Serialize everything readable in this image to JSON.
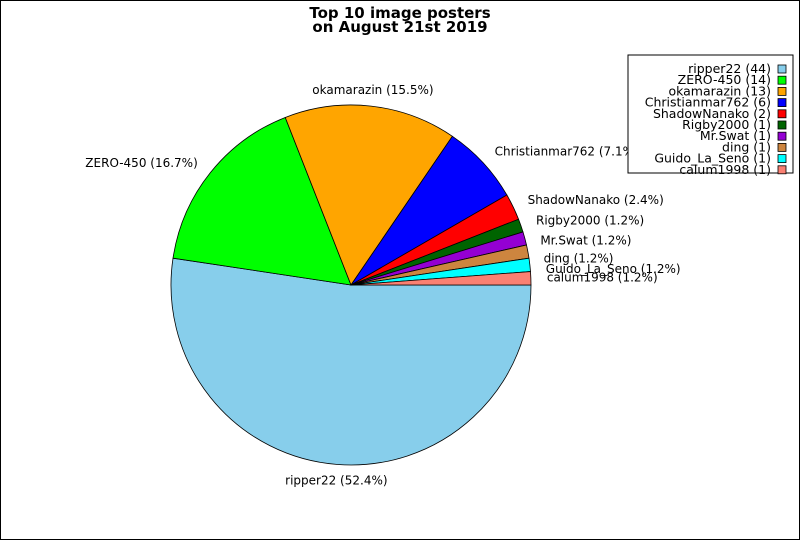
{
  "chart_data": {
    "type": "pie",
    "title": [
      "Top 10 image posters",
      "on August 21st 2019"
    ],
    "slices": [
      {
        "name": "ripper22",
        "count": 44,
        "percent": "52.4%",
        "color": "#87ceeb"
      },
      {
        "name": "ZERO-450",
        "count": 14,
        "percent": "16.7%",
        "color": "#00ff00"
      },
      {
        "name": "okamarazin",
        "count": 13,
        "percent": "15.5%",
        "color": "#ffa500"
      },
      {
        "name": "Christianmar762",
        "count": 6,
        "percent": "7.1%",
        "color": "#0000ff"
      },
      {
        "name": "ShadowNanako",
        "count": 2,
        "percent": "2.4%",
        "color": "#ff0000"
      },
      {
        "name": "Rigby2000",
        "count": 1,
        "percent": "1.2%",
        "color": "#006400"
      },
      {
        "name": "Mr.Swat",
        "count": 1,
        "percent": "1.2%",
        "color": "#9400d3"
      },
      {
        "name": "ding",
        "count": 1,
        "percent": "1.2%",
        "color": "#cd853f"
      },
      {
        "name": "Guido_La_Seno",
        "count": 1,
        "percent": "1.2%",
        "color": "#00ffff"
      },
      {
        "name": "calum1998",
        "count": 1,
        "percent": "1.2%",
        "color": "#fa8072"
      }
    ],
    "legend_position": "top-right"
  }
}
